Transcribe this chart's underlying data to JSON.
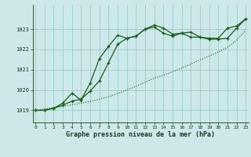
{
  "title": "Graphe pression niveau de la mer (hPa)",
  "bg_color": "#cce8e8",
  "grid_color": "#99cccc",
  "line_color": "#1a5e1a",
  "x_ticks": [
    0,
    1,
    2,
    3,
    4,
    5,
    6,
    7,
    8,
    9,
    10,
    11,
    12,
    13,
    14,
    15,
    16,
    17,
    18,
    19,
    20,
    21,
    22,
    23
  ],
  "y_ticks": [
    1019,
    1020,
    1021,
    1022,
    1023
  ],
  "ylim": [
    1018.4,
    1024.2
  ],
  "xlim": [
    -0.3,
    23.3
  ],
  "series1_x": [
    0,
    1,
    2,
    3,
    4,
    5,
    6,
    7,
    8,
    9,
    10,
    11,
    12,
    13,
    14,
    15,
    16,
    17,
    18,
    19,
    20,
    21,
    22,
    23
  ],
  "series1_y": [
    1019.0,
    1019.0,
    1019.1,
    1019.25,
    1019.45,
    1019.55,
    1019.95,
    1020.45,
    1021.35,
    1022.25,
    1022.55,
    1022.65,
    1023.0,
    1023.2,
    1023.05,
    1022.75,
    1022.8,
    1022.85,
    1022.6,
    1022.55,
    1022.55,
    1023.05,
    1023.15,
    1023.5
  ],
  "series2_x": [
    0,
    1,
    2,
    3,
    4,
    5,
    6,
    7,
    8,
    9,
    10,
    11,
    12,
    13,
    14,
    15,
    16,
    17,
    18,
    19,
    20,
    21,
    22,
    23
  ],
  "series2_y": [
    1019.0,
    1019.0,
    1019.1,
    1019.35,
    1019.85,
    1019.5,
    1020.35,
    1021.55,
    1022.15,
    1022.7,
    1022.55,
    1022.65,
    1023.0,
    1023.1,
    1022.8,
    1022.65,
    1022.8,
    1022.6,
    1022.6,
    1022.5,
    1022.5,
    1022.55,
    1023.05,
    1023.5
  ],
  "trend_x": [
    0,
    1,
    2,
    3,
    4,
    5,
    6,
    7,
    8,
    9,
    10,
    11,
    12,
    13,
    14,
    15,
    16,
    17,
    18,
    19,
    20,
    21,
    22,
    23
  ],
  "trend_y": [
    1019.0,
    1019.06,
    1019.13,
    1019.2,
    1019.27,
    1019.35,
    1019.44,
    1019.55,
    1019.67,
    1019.82,
    1020.0,
    1020.18,
    1020.38,
    1020.58,
    1020.73,
    1020.9,
    1021.08,
    1021.28,
    1021.48,
    1021.67,
    1021.87,
    1022.1,
    1022.45,
    1022.95
  ]
}
